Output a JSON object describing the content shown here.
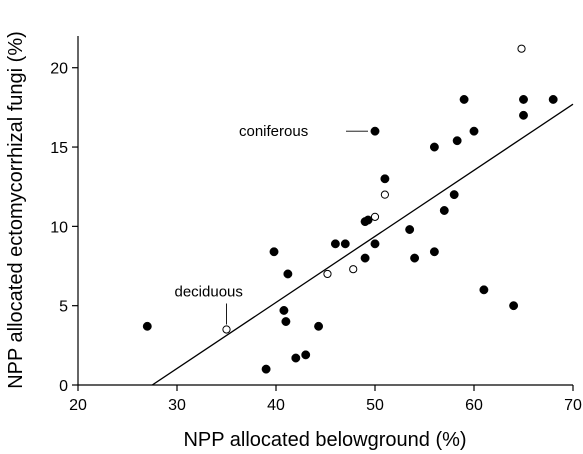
{
  "chart_data": {
    "type": "scatter",
    "title": "",
    "xlabel": "NPP allocated belowground (%)",
    "ylabel": "NPP allocated ectomycorrhizal fungi (%)",
    "xlim": [
      20,
      70
    ],
    "ylim": [
      0,
      22
    ],
    "xticks": [
      20,
      30,
      40,
      50,
      60,
      70
    ],
    "yticks": [
      0,
      5,
      10,
      15,
      20
    ],
    "grid": false,
    "legend": "none",
    "colors": {
      "filled": "#000000",
      "open_fill": "#ffffff",
      "stroke": "#000000"
    },
    "series": [
      {
        "marker": "filled-circle",
        "points": [
          [
            27,
            3.7
          ],
          [
            39,
            1
          ],
          [
            39.8,
            8.4
          ],
          [
            40.8,
            4.7
          ],
          [
            41,
            4
          ],
          [
            41.2,
            7
          ],
          [
            42,
            1.7
          ],
          [
            43,
            1.9
          ],
          [
            44.3,
            3.7
          ],
          [
            46,
            8.9
          ],
          [
            47,
            8.9
          ],
          [
            49,
            8
          ],
          [
            49,
            10.3
          ],
          [
            49.3,
            10.4
          ],
          [
            50,
            8.9
          ],
          [
            50,
            16
          ],
          [
            51,
            13
          ],
          [
            53.5,
            9.8
          ],
          [
            54,
            8
          ],
          [
            56,
            15
          ],
          [
            56,
            8.4
          ],
          [
            57,
            11
          ],
          [
            58,
            12
          ],
          [
            58.3,
            15.4
          ],
          [
            59,
            18
          ],
          [
            60,
            16
          ],
          [
            61,
            6
          ],
          [
            64,
            5
          ],
          [
            65,
            17
          ],
          [
            65,
            18
          ],
          [
            68,
            18
          ]
        ]
      },
      {
        "marker": "open-circle",
        "points": [
          [
            35,
            3.5
          ],
          [
            45.2,
            7
          ],
          [
            47.8,
            7.3
          ],
          [
            50,
            10.6
          ],
          [
            51,
            12
          ],
          [
            64.8,
            21.2
          ]
        ]
      }
    ],
    "fit_line": {
      "x": [
        27.5,
        70
      ],
      "y": [
        0,
        17.7
      ]
    },
    "annotations": [
      {
        "text": "coniferous",
        "target": [
          50,
          16
        ]
      },
      {
        "text": "deciduous",
        "target": [
          35,
          3.5
        ]
      }
    ]
  }
}
